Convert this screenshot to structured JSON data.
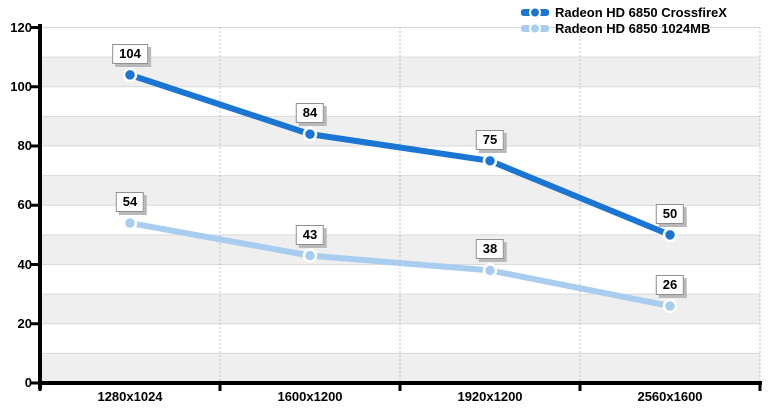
{
  "chart_data": {
    "type": "line",
    "categories": [
      "1280x1024",
      "1600x1200",
      "1920x1200",
      "2560x1600"
    ],
    "series": [
      {
        "name": "Radeon HD 6850 CrossfireX",
        "values": [
          104,
          84,
          75,
          50
        ],
        "color": "#1b75d2"
      },
      {
        "name": "Radeon HD 6850 1024MB",
        "values": [
          54,
          43,
          38,
          26
        ],
        "color": "#a8cdee"
      }
    ],
    "title": "",
    "xlabel": "",
    "ylabel": "",
    "ylim": [
      0,
      120
    ],
    "yticks": [
      0,
      20,
      40,
      60,
      80,
      100,
      120
    ],
    "band_step": 10,
    "grid": "alternating horizontal bands, light gridlines every 10, dotted vertical category separators",
    "legend_position": "top-right",
    "data_labels": true
  },
  "styles": {
    "background": "#ffffff",
    "band_fill": "#efefef",
    "gridline": "#d9d9d9",
    "dotted_line": "#8c8c8c",
    "axis": "#000000",
    "marker_ring": "#ffffff",
    "label_box_bg": "#ffffff",
    "label_box_border": "#8f8f8f",
    "label_box_shadow": "#b9b9b9",
    "text": "#000000"
  }
}
